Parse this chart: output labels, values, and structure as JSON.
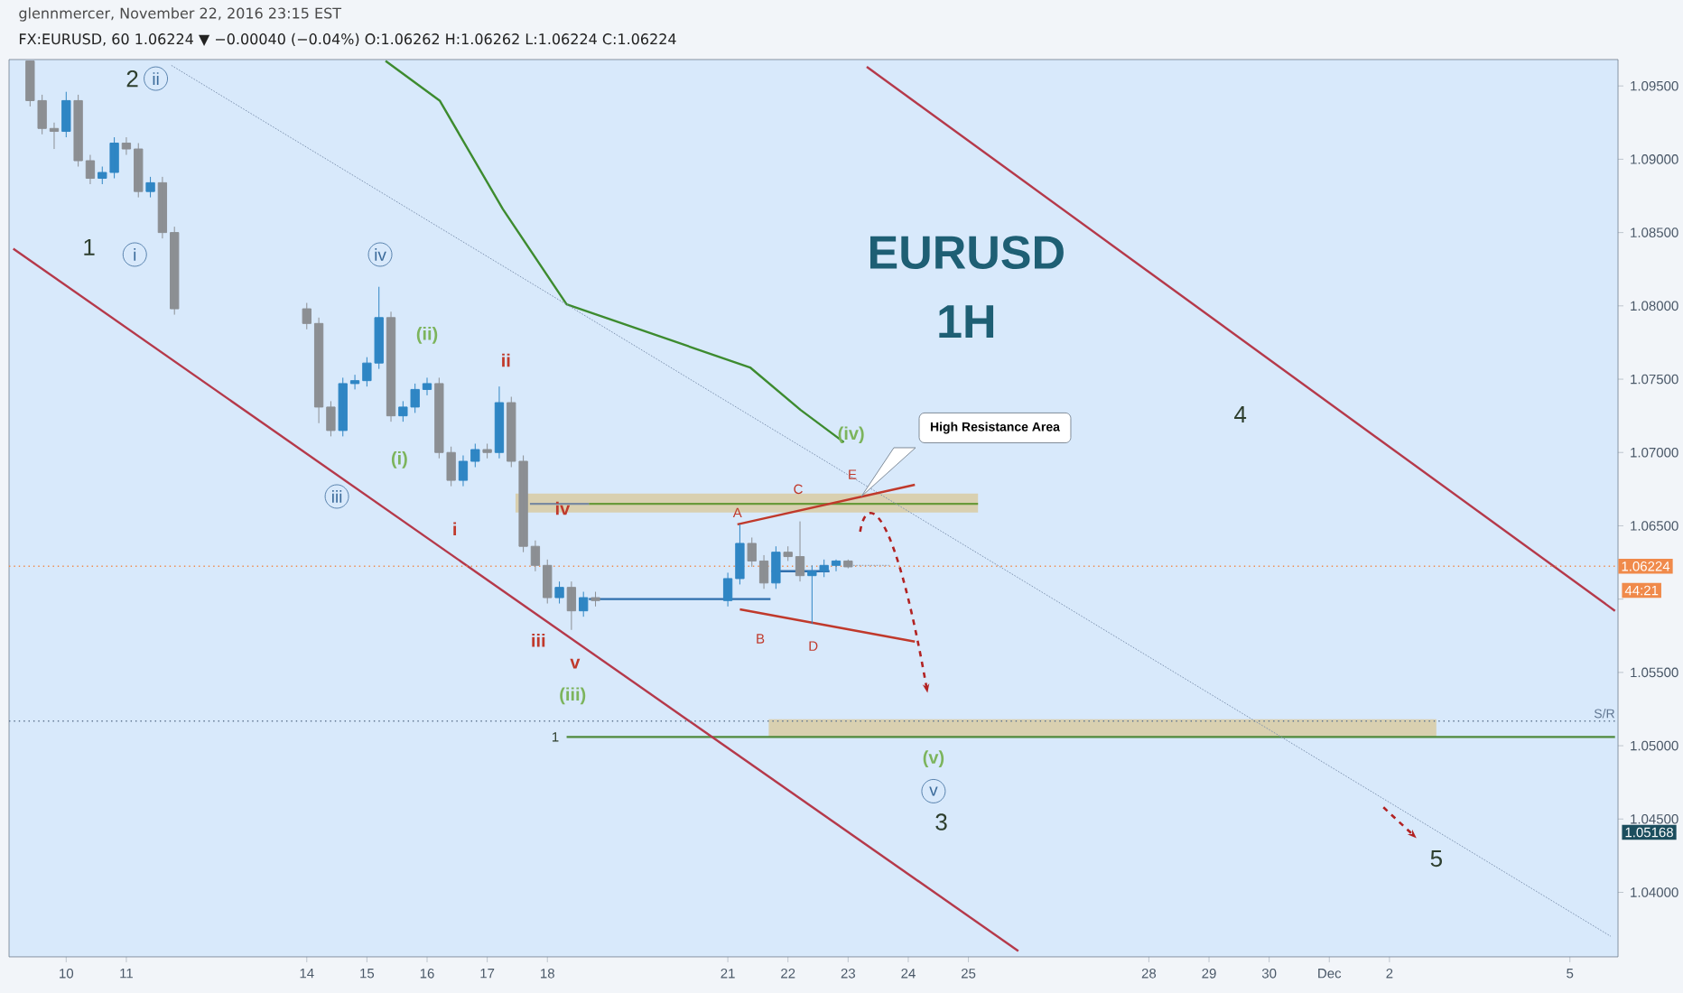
{
  "chart_data": {
    "type": "candlestick",
    "title": "EURUSD",
    "subtitle": "1H",
    "x": [
      "2016-11-09T09:36",
      "2016-11-09T14:24",
      "2016-11-09T19:12",
      "2016-11-10T00:00",
      "2016-11-10T04:48",
      "2016-11-10T09:36",
      "2016-11-10T14:24",
      "2016-11-10T19:12",
      "2016-11-11T00:00",
      "2016-11-11T04:48",
      "2016-11-11T09:36",
      "2016-11-11T14:24",
      "2016-11-11T19:12",
      "2016-11-14T00:00",
      "2016-11-14T04:48",
      "2016-11-14T09:36",
      "2016-11-14T14:24",
      "2016-11-14T19:12",
      "2016-11-15T00:00",
      "2016-11-15T04:48",
      "2016-11-15T09:36",
      "2016-11-15T14:24",
      "2016-11-15T19:12",
      "2016-11-16T00:00",
      "2016-11-16T04:48",
      "2016-11-16T09:36",
      "2016-11-16T14:24",
      "2016-11-16T19:12",
      "2016-11-17T00:00",
      "2016-11-17T04:48",
      "2016-11-17T09:36",
      "2016-11-17T14:24",
      "2016-11-17T19:12",
      "2016-11-18T00:00",
      "2016-11-18T04:48",
      "2016-11-18T09:36",
      "2016-11-18T14:24",
      "2016-11-18T19:12",
      "2016-11-21T00:00",
      "2016-11-21T04:48",
      "2016-11-21T09:36",
      "2016-11-21T14:24",
      "2016-11-21T19:12",
      "2016-11-22T00:00",
      "2016-11-22T04:48",
      "2016-11-22T09:36",
      "2016-11-22T14:24",
      "2016-11-22T19:12",
      "2016-11-23T00:00"
    ],
    "ohlc": [
      [
        1.0967,
        1.0967,
        1.0936,
        1.094
      ],
      [
        1.094,
        1.0944,
        1.0917,
        1.0921
      ],
      [
        1.0921,
        1.0925,
        1.0907,
        1.0919
      ],
      [
        1.0919,
        1.0946,
        1.0915,
        1.094
      ],
      [
        1.094,
        1.0944,
        1.0895,
        1.0899
      ],
      [
        1.0899,
        1.0903,
        1.0883,
        1.0887
      ],
      [
        1.0887,
        1.0895,
        1.0883,
        1.0891
      ],
      [
        1.0891,
        1.0915,
        1.0887,
        1.0911
      ],
      [
        1.0911,
        1.0915,
        1.0903,
        1.0907
      ],
      [
        1.0907,
        1.0911,
        1.0874,
        1.0878
      ],
      [
        1.0878,
        1.0888,
        1.0874,
        1.0884
      ],
      [
        1.0884,
        1.0888,
        1.0846,
        1.085
      ],
      [
        1.085,
        1.0854,
        1.0794,
        1.0798
      ],
      [
        1.0798,
        1.0802,
        1.0784,
        1.0788
      ],
      [
        1.0788,
        1.0792,
        1.072,
        1.0731
      ],
      [
        1.0731,
        1.0735,
        1.0711,
        1.0715
      ],
      [
        1.0715,
        1.0751,
        1.0711,
        1.0747
      ],
      [
        1.0747,
        1.0753,
        1.0743,
        1.0749
      ],
      [
        1.0749,
        1.0765,
        1.0745,
        1.0761
      ],
      [
        1.0761,
        1.0813,
        1.0757,
        1.0792
      ],
      [
        1.0792,
        1.0796,
        1.0721,
        1.0725
      ],
      [
        1.0725,
        1.0735,
        1.0721,
        1.0731
      ],
      [
        1.0731,
        1.0747,
        1.0727,
        1.0743
      ],
      [
        1.0743,
        1.0751,
        1.0739,
        1.0747
      ],
      [
        1.0747,
        1.0751,
        1.0696,
        1.07
      ],
      [
        1.07,
        1.0704,
        1.0677,
        1.0681
      ],
      [
        1.0681,
        1.0698,
        1.0677,
        1.0694
      ],
      [
        1.0694,
        1.0706,
        1.069,
        1.0702
      ],
      [
        1.0702,
        1.0706,
        1.0696,
        1.07
      ],
      [
        1.07,
        1.0745,
        1.0696,
        1.0734
      ],
      [
        1.0734,
        1.0738,
        1.069,
        1.0694
      ],
      [
        1.0694,
        1.0698,
        1.0632,
        1.0636
      ],
      [
        1.0636,
        1.064,
        1.0619,
        1.0623
      ],
      [
        1.0623,
        1.0627,
        1.0597,
        1.0601
      ],
      [
        1.0601,
        1.0612,
        1.0597,
        1.0608
      ],
      [
        1.0608,
        1.0612,
        1.0579,
        1.0592
      ],
      [
        1.0592,
        1.0605,
        1.0588,
        1.0601
      ],
      [
        1.0601,
        1.0605,
        1.0595,
        1.0599
      ],
      [
        1.0599,
        1.0618,
        1.0595,
        1.0614
      ],
      [
        1.0614,
        1.0651,
        1.061,
        1.0638
      ],
      [
        1.0638,
        1.0642,
        1.0622,
        1.0626
      ],
      [
        1.0626,
        1.063,
        1.0607,
        1.0611
      ],
      [
        1.0611,
        1.0636,
        1.0607,
        1.0632
      ],
      [
        1.0632,
        1.0636,
        1.0626,
        1.0629
      ],
      [
        1.0629,
        1.0653,
        1.0612,
        1.0616
      ],
      [
        1.0616,
        1.0623,
        1.0583,
        1.0619
      ],
      [
        1.0619,
        1.0627,
        1.0615,
        1.0623
      ],
      [
        1.0623,
        1.0627,
        1.0619,
        1.0626
      ],
      [
        1.0626,
        1.0627,
        1.0621,
        1.0622
      ]
    ],
    "colors": [
      "#8c8f93",
      "#8c8f93",
      "#8c8f93",
      "#2f86c4",
      "#8c8f93",
      "#8c8f93",
      "#2f86c4",
      "#2f86c4",
      "#8c8f93",
      "#8c8f93",
      "#2f86c4",
      "#8c8f93",
      "#8c8f93",
      "#8c8f93",
      "#8c8f93",
      "#8c8f93",
      "#2f86c4",
      "#2f86c4",
      "#2f86c4",
      "#2f86c4",
      "#8c8f93",
      "#2f86c4",
      "#2f86c4",
      "#2f86c4",
      "#8c8f93",
      "#8c8f93",
      "#2f86c4",
      "#2f86c4",
      "#8c8f93",
      "#2f86c4",
      "#8c8f93",
      "#8c8f93",
      "#8c8f93",
      "#8c8f93",
      "#2f86c4",
      "#8c8f93",
      "#2f86c4",
      "#8c8f93",
      "#2f86c4",
      "#2f86c4",
      "#8c8f93",
      "#8c8f93",
      "#2f86c4",
      "#8c8f93",
      "#8c8f93",
      "#2f86c4",
      "#2f86c4",
      "#2f86c4",
      "#8c8f93"
    ],
    "series": [
      {
        "type": "line",
        "color": "#6a9a3a",
        "line_style": "solid",
        "x": [
          "2016-11-17T11:17",
          "2016-11-18T16:34",
          "2016-11-25T03:50"
        ],
        "values": [
          null,
          1.0665,
          1.0665
        ],
        "lower": [
          1.0659,
          1.0659,
          1.0659
        ],
        "upper": [
          1.0672,
          1.0672,
          1.0672
        ]
      },
      {
        "type": "line",
        "color": "#4f8a3c",
        "line_style": "solid",
        "x": [
          "2016-11-18T07:41",
          "2016-11-21T16:19",
          "2016-12-02T18:43",
          "2016-12-05T18:00"
        ],
        "values": [
          1.0506,
          1.0506,
          1.0506,
          1.0506
        ],
        "lower": [
          null,
          1.0506,
          1.0506,
          null
        ],
        "upper": [
          null,
          1.0518,
          1.0518,
          null
        ]
      },
      {
        "type": "line",
        "color": "#3d8b2f",
        "line_style": "solid",
        "x": [
          "2016-11-15T07:26",
          "2016-11-16T05:02",
          "2016-11-17T06:14",
          "2016-11-18T07:41",
          "2016-11-21T08:53",
          "2016-11-22T05:02",
          "2016-11-22T22:19"
        ],
        "values": [
          1.0967,
          1.094,
          1.0866,
          1.0801,
          1.0758,
          1.0729,
          1.0707
        ]
      },
      {
        "type": "line",
        "color": "#b5394a",
        "line_style": "solid",
        "x": [
          "2016-11-09T02:53",
          "2016-11-25T19:55"
        ],
        "values": [
          1.0839,
          1.036
        ]
      },
      {
        "type": "line",
        "color": "#b5394a",
        "line_style": "solid",
        "x": [
          "2016-11-23T07:26",
          "2016-12-05T18:00"
        ],
        "values": [
          1.0963,
          1.0592
        ]
      },
      {
        "type": "line",
        "color": "#7d93b0",
        "line_style": "dotted",
        "x": [
          "2016-11-11T18:00",
          "2016-12-05T16:19"
        ],
        "values": [
          1.0964,
          1.037
        ]
      },
      {
        "type": "line",
        "color": "#c0392b",
        "line_style": "solid",
        "x": [
          "2016-11-21T03:50",
          "2016-11-24T02:38"
        ],
        "values": [
          1.0651,
          1.0678
        ]
      },
      {
        "type": "line",
        "color": "#c0392b",
        "line_style": "solid",
        "x": [
          "2016-11-21T04:48",
          "2016-11-24T02:38"
        ],
        "values": [
          1.0593,
          1.0571
        ]
      },
      {
        "type": "line",
        "color": "#2f6fad",
        "line_style": "solid",
        "x": [
          "2016-11-18T16:34",
          "2016-11-21T17:02"
        ],
        "values": [
          1.06,
          1.06
        ]
      },
      {
        "type": "line",
        "color": "#2f6fad",
        "line_style": "solid",
        "x": [
          "2016-11-21T17:31",
          "2016-11-22T16:34"
        ],
        "values": [
          1.0619,
          1.0619
        ]
      },
      {
        "type": "line",
        "color": "#8899aa",
        "line_style": "dotted",
        "x": [
          "2016-11-22T23:46",
          "2016-11-23T16:19"
        ],
        "values": [
          1.0623,
          1.0623
        ]
      },
      {
        "type": "line",
        "color": "#7a8aa0",
        "line_style": "solid",
        "x": [
          "2016-11-17T17:02",
          "2016-11-18T16:34"
        ],
        "values": [
          1.0665,
          1.0665
        ]
      }
    ],
    "ref_lines": [
      {
        "axis": "y",
        "value": 1.06224,
        "label": "1.06224",
        "color": "#f08a4b",
        "line_style": "dotted"
      },
      {
        "axis": "y",
        "value": 1.05168,
        "label": "S/R",
        "color": "#5f7590",
        "line_style": "dotted"
      }
    ],
    "xlim": [
      "2016-11-09T01:12",
      "2016-12-05T19:12"
    ],
    "ylim": [
      1.0356,
      1.0968
    ],
    "xticks": [
      {
        "value": "2016-11-10",
        "label": "10"
      },
      {
        "value": "2016-11-11",
        "label": "11"
      },
      {
        "value": "2016-11-14",
        "label": "14"
      },
      {
        "value": "2016-11-15",
        "label": "15"
      },
      {
        "value": "2016-11-16",
        "label": "16"
      },
      {
        "value": "2016-11-17",
        "label": "17"
      },
      {
        "value": "2016-11-18",
        "label": "18"
      },
      {
        "value": "2016-11-21",
        "label": "21"
      },
      {
        "value": "2016-11-22",
        "label": "22"
      },
      {
        "value": "2016-11-23",
        "label": "23"
      },
      {
        "value": "2016-11-24",
        "label": "24"
      },
      {
        "value": "2016-11-25",
        "label": "25"
      },
      {
        "value": "2016-11-28",
        "label": "28"
      },
      {
        "value": "2016-11-29",
        "label": "29"
      },
      {
        "value": "2016-11-30",
        "label": "30"
      },
      {
        "value": "2016-12-01",
        "label": "Dec"
      },
      {
        "value": "2016-12-02",
        "label": "2"
      },
      {
        "value": "2016-12-05",
        "label": "5"
      }
    ],
    "yticks": [
      {
        "value": 1.04,
        "label": "1.04000"
      },
      {
        "value": 1.045,
        "label": "1.04500"
      },
      {
        "value": 1.05,
        "label": "1.05000"
      },
      {
        "value": 1.055,
        "label": "1.05500"
      },
      {
        "value": 1.06,
        "label": null
      },
      {
        "value": 1.065,
        "label": "1.06500"
      },
      {
        "value": 1.07,
        "label": "1.07000"
      },
      {
        "value": 1.075,
        "label": "1.07500"
      },
      {
        "value": 1.08,
        "label": "1.08000"
      },
      {
        "value": 1.085,
        "label": "1.08500"
      },
      {
        "value": 1.09,
        "label": "1.09000"
      },
      {
        "value": 1.095,
        "label": "1.09500"
      }
    ],
    "annotations": [
      "1",
      "2",
      "ii",
      "i",
      "iv",
      "iii",
      "(ii)",
      "(i)",
      "ii",
      "i",
      "iii",
      "iv",
      "v",
      "(iii)",
      "A",
      "B",
      "C",
      "D",
      "E",
      "(iv)",
      "4",
      "(v)",
      "v",
      "3",
      "5",
      "1",
      "High Resistance Area",
      "glennmercer, November 22, 2016 23:15 EST",
      "FX:EURUSD, 60 1.06224 ▼ −0.00040 (−0.04%) O:1.06262 H:1.06262 L:1.06224 C:1.06224",
      "44:21",
      "1.05168"
    ]
  }
}
